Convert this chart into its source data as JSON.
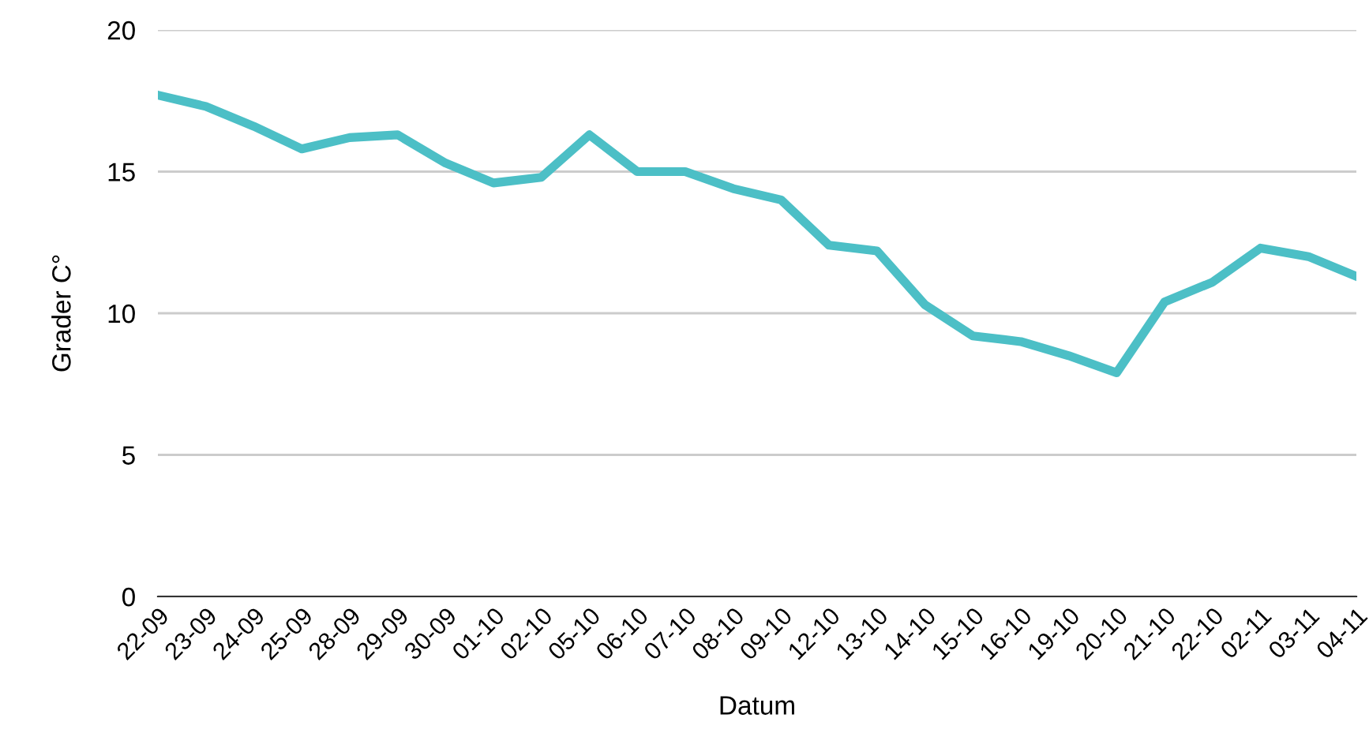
{
  "chart_data": {
    "type": "line",
    "xlabel": "Datum",
    "ylabel": "Grader C°",
    "categories": [
      "22-09",
      "23-09",
      "24-09",
      "25-09",
      "28-09",
      "29-09",
      "30-09",
      "01-10",
      "02-10",
      "05-10",
      "06-10",
      "07-10",
      "08-10",
      "09-10",
      "12-10",
      "13-10",
      "14-10",
      "15-10",
      "16-10",
      "19-10",
      "20-10",
      "21-10",
      "22-10",
      "02-11",
      "03-11",
      "04-11"
    ],
    "series": [
      {
        "color": "#4cbfc6",
        "values": [
          17.7,
          17.3,
          16.6,
          15.8,
          16.2,
          16.3,
          15.3,
          14.6,
          14.8,
          16.3,
          15.0,
          15.0,
          14.4,
          14.0,
          12.4,
          12.2,
          10.3,
          9.2,
          9.0,
          8.5,
          7.9,
          10.4,
          11.1,
          12.3,
          12.0,
          11.3
        ]
      }
    ],
    "ylim": [
      0,
      20
    ],
    "yticks": [
      0,
      5,
      10,
      15,
      20
    ],
    "grid": "y",
    "legend": false,
    "marker": "none",
    "line_style": "solid"
  }
}
